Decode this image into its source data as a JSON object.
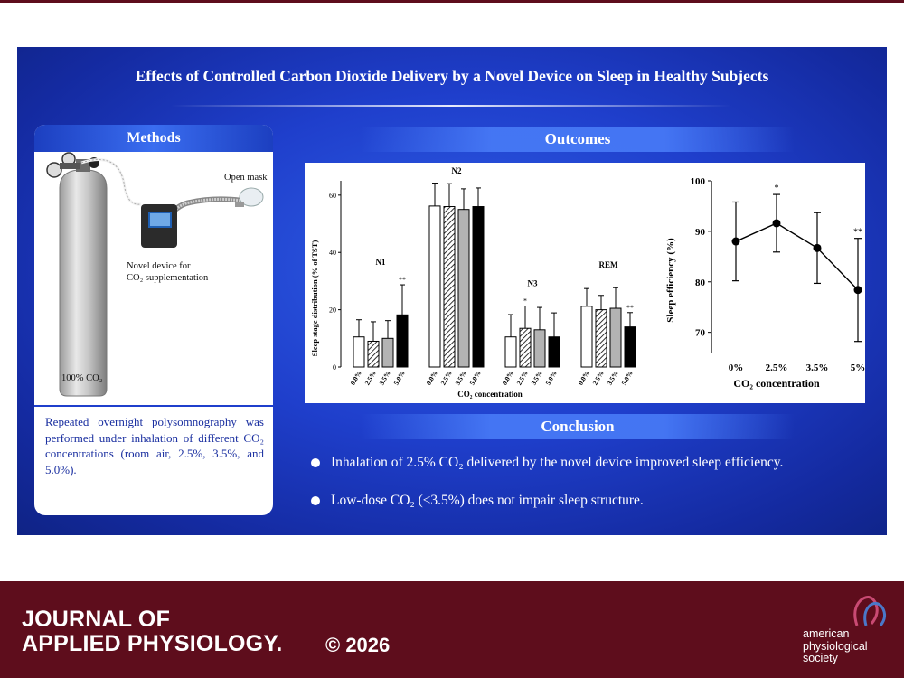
{
  "title": "Effects of Controlled Carbon Dioxide Delivery by a Novel Device on Sleep in Healthy Subjects",
  "methods": {
    "heading": "Methods",
    "labels": {
      "open_mask": "Open mask",
      "device_line1": "Novel device for",
      "device_line2": "CO₂ supplementation",
      "cylinder": "100% CO₂"
    },
    "text": "Repeated overnight polysomnography was performed under inhalation of different CO₂ concentrations (room air, 2.5%, 3.5%, and 5.0%)."
  },
  "outcomes": {
    "heading": "Outcomes"
  },
  "conclusion": {
    "heading": "Conclusion",
    "bullets": [
      "Inhalation of 2.5% CO₂ delivered by the novel device improved sleep efficiency.",
      "Low-dose CO₂ (≤3.5%) does not impair sleep structure."
    ]
  },
  "chart_data": [
    {
      "type": "bar",
      "ylabel": "Sleep stage distribution (% of TST)",
      "xlabel": "CO₂ concentration",
      "ylim": [
        0,
        65
      ],
      "yticks": [
        0,
        20,
        40,
        60
      ],
      "series_labels": [
        "0.0%",
        "2.5%",
        "3.5%",
        "5.0%"
      ],
      "groups": [
        {
          "name": "N1",
          "values": [
            10.5,
            9,
            10,
            18.2
          ],
          "errors": [
            6,
            6.8,
            6.2,
            10.5
          ],
          "marks": [
            "",
            "",
            "",
            "**"
          ]
        },
        {
          "name": "N2",
          "values": [
            56.2,
            56,
            55,
            56
          ],
          "errors": [
            8,
            8,
            7.2,
            6.5
          ],
          "marks": [
            "",
            "",
            "",
            ""
          ]
        },
        {
          "name": "N3",
          "values": [
            10.5,
            13.5,
            13,
            10.5
          ],
          "errors": [
            7.8,
            7.8,
            7.8,
            8.4
          ],
          "marks": [
            "",
            "*",
            "",
            ""
          ]
        },
        {
          "name": "REM",
          "values": [
            21.2,
            20,
            20.5,
            14
          ],
          "errors": [
            6.2,
            5,
            7.2,
            5
          ],
          "marks": [
            "",
            "",
            "",
            "**"
          ]
        }
      ],
      "colors": [
        "#ffffff",
        "hatch",
        "#b3b3b3",
        "#000000"
      ]
    },
    {
      "type": "line",
      "ylabel": "Sleep efficiency (%)",
      "xlabel": "CO₂ concentration",
      "ylim": [
        66,
        100
      ],
      "yticks": [
        70,
        80,
        90,
        100
      ],
      "categories": [
        "0%",
        "2.5%",
        "3.5%",
        "5%"
      ],
      "values": [
        88,
        91.6,
        86.7,
        78.4
      ],
      "errors": [
        7.8,
        5.7,
        7,
        10.2
      ],
      "marks": [
        "",
        "*",
        "",
        "**"
      ]
    }
  ],
  "footer": {
    "journal_line1": "JOURNAL OF",
    "journal_line2": "APPLIED PHYSIOLOGY.",
    "copyright": "© 2026",
    "society_line1": "american",
    "society_line2": "physiological",
    "society_line3": "society"
  }
}
